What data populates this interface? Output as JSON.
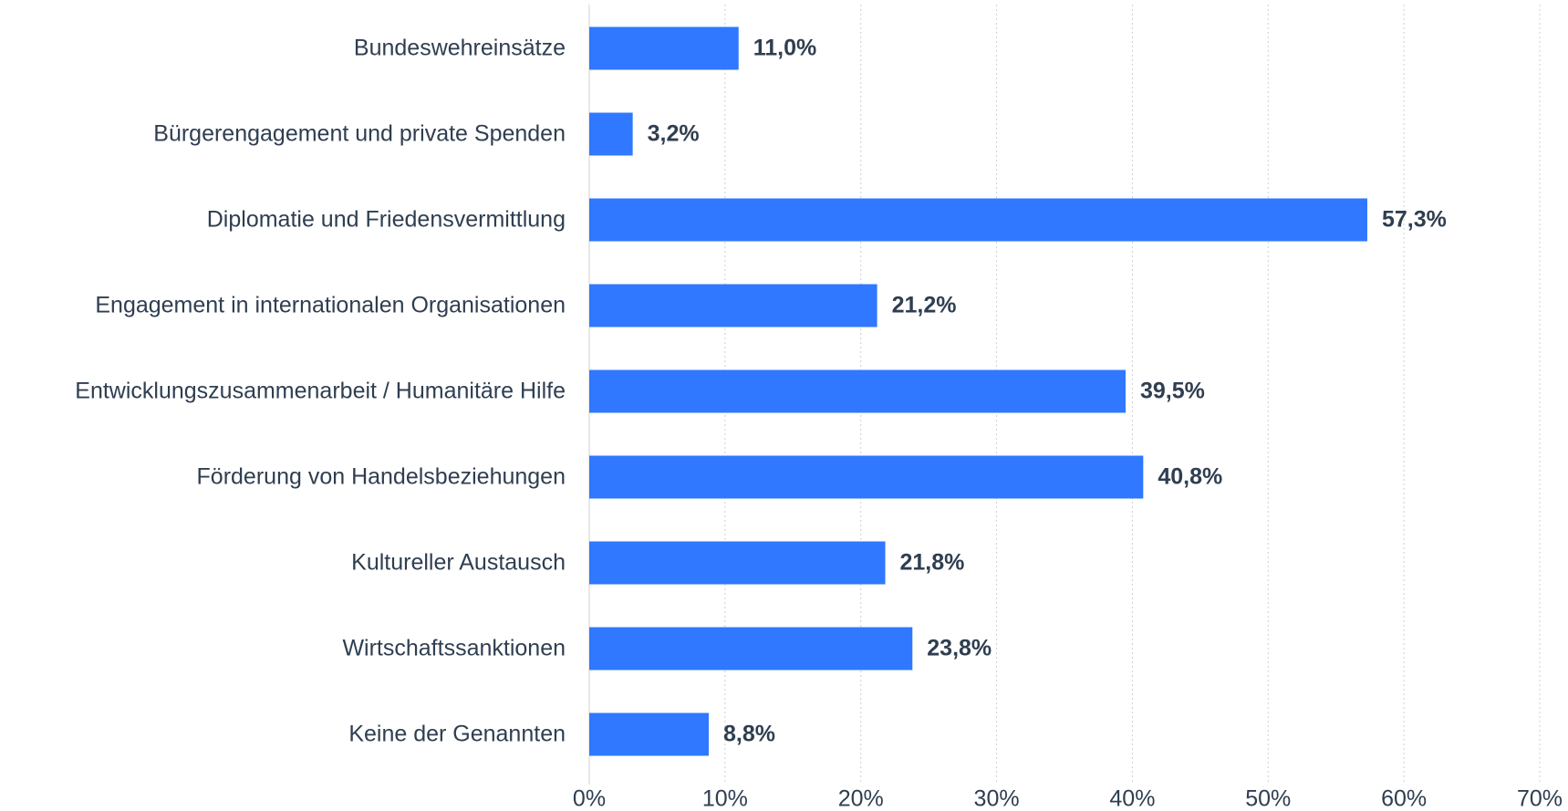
{
  "chart_data": {
    "type": "bar",
    "orientation": "horizontal",
    "categories": [
      "Bundeswehreinsätze",
      "Bürgerengagement und private Spenden",
      "Diplomatie und Friedensvermittlung",
      "Engagement in internationalen Organisationen",
      "Entwicklungszusammenarbeit / Humanitäre Hilfe",
      "Förderung von Handelsbeziehungen",
      "Kultureller Austausch",
      "Wirtschaftssanktionen",
      "Keine der Genannten"
    ],
    "values": [
      11.0,
      3.2,
      57.3,
      21.2,
      39.5,
      40.8,
      21.8,
      23.8,
      8.8
    ],
    "value_labels": [
      "11,0%",
      "3,2%",
      "57,3%",
      "21,2%",
      "39,5%",
      "40,8%",
      "21,8%",
      "23,8%",
      "8,8%"
    ],
    "color": "#2f78ff",
    "xlim": [
      0,
      70
    ],
    "xticks": [
      {
        "value": 0,
        "label": "0%"
      },
      {
        "value": 10,
        "label": "10%"
      },
      {
        "value": 20,
        "label": "20%"
      },
      {
        "value": 30,
        "label": "30%"
      },
      {
        "value": 40,
        "label": "40%"
      },
      {
        "value": 50,
        "label": "50%"
      },
      {
        "value": 60,
        "label": "60%"
      },
      {
        "value": 70,
        "label": "70%"
      }
    ],
    "grid": true
  }
}
